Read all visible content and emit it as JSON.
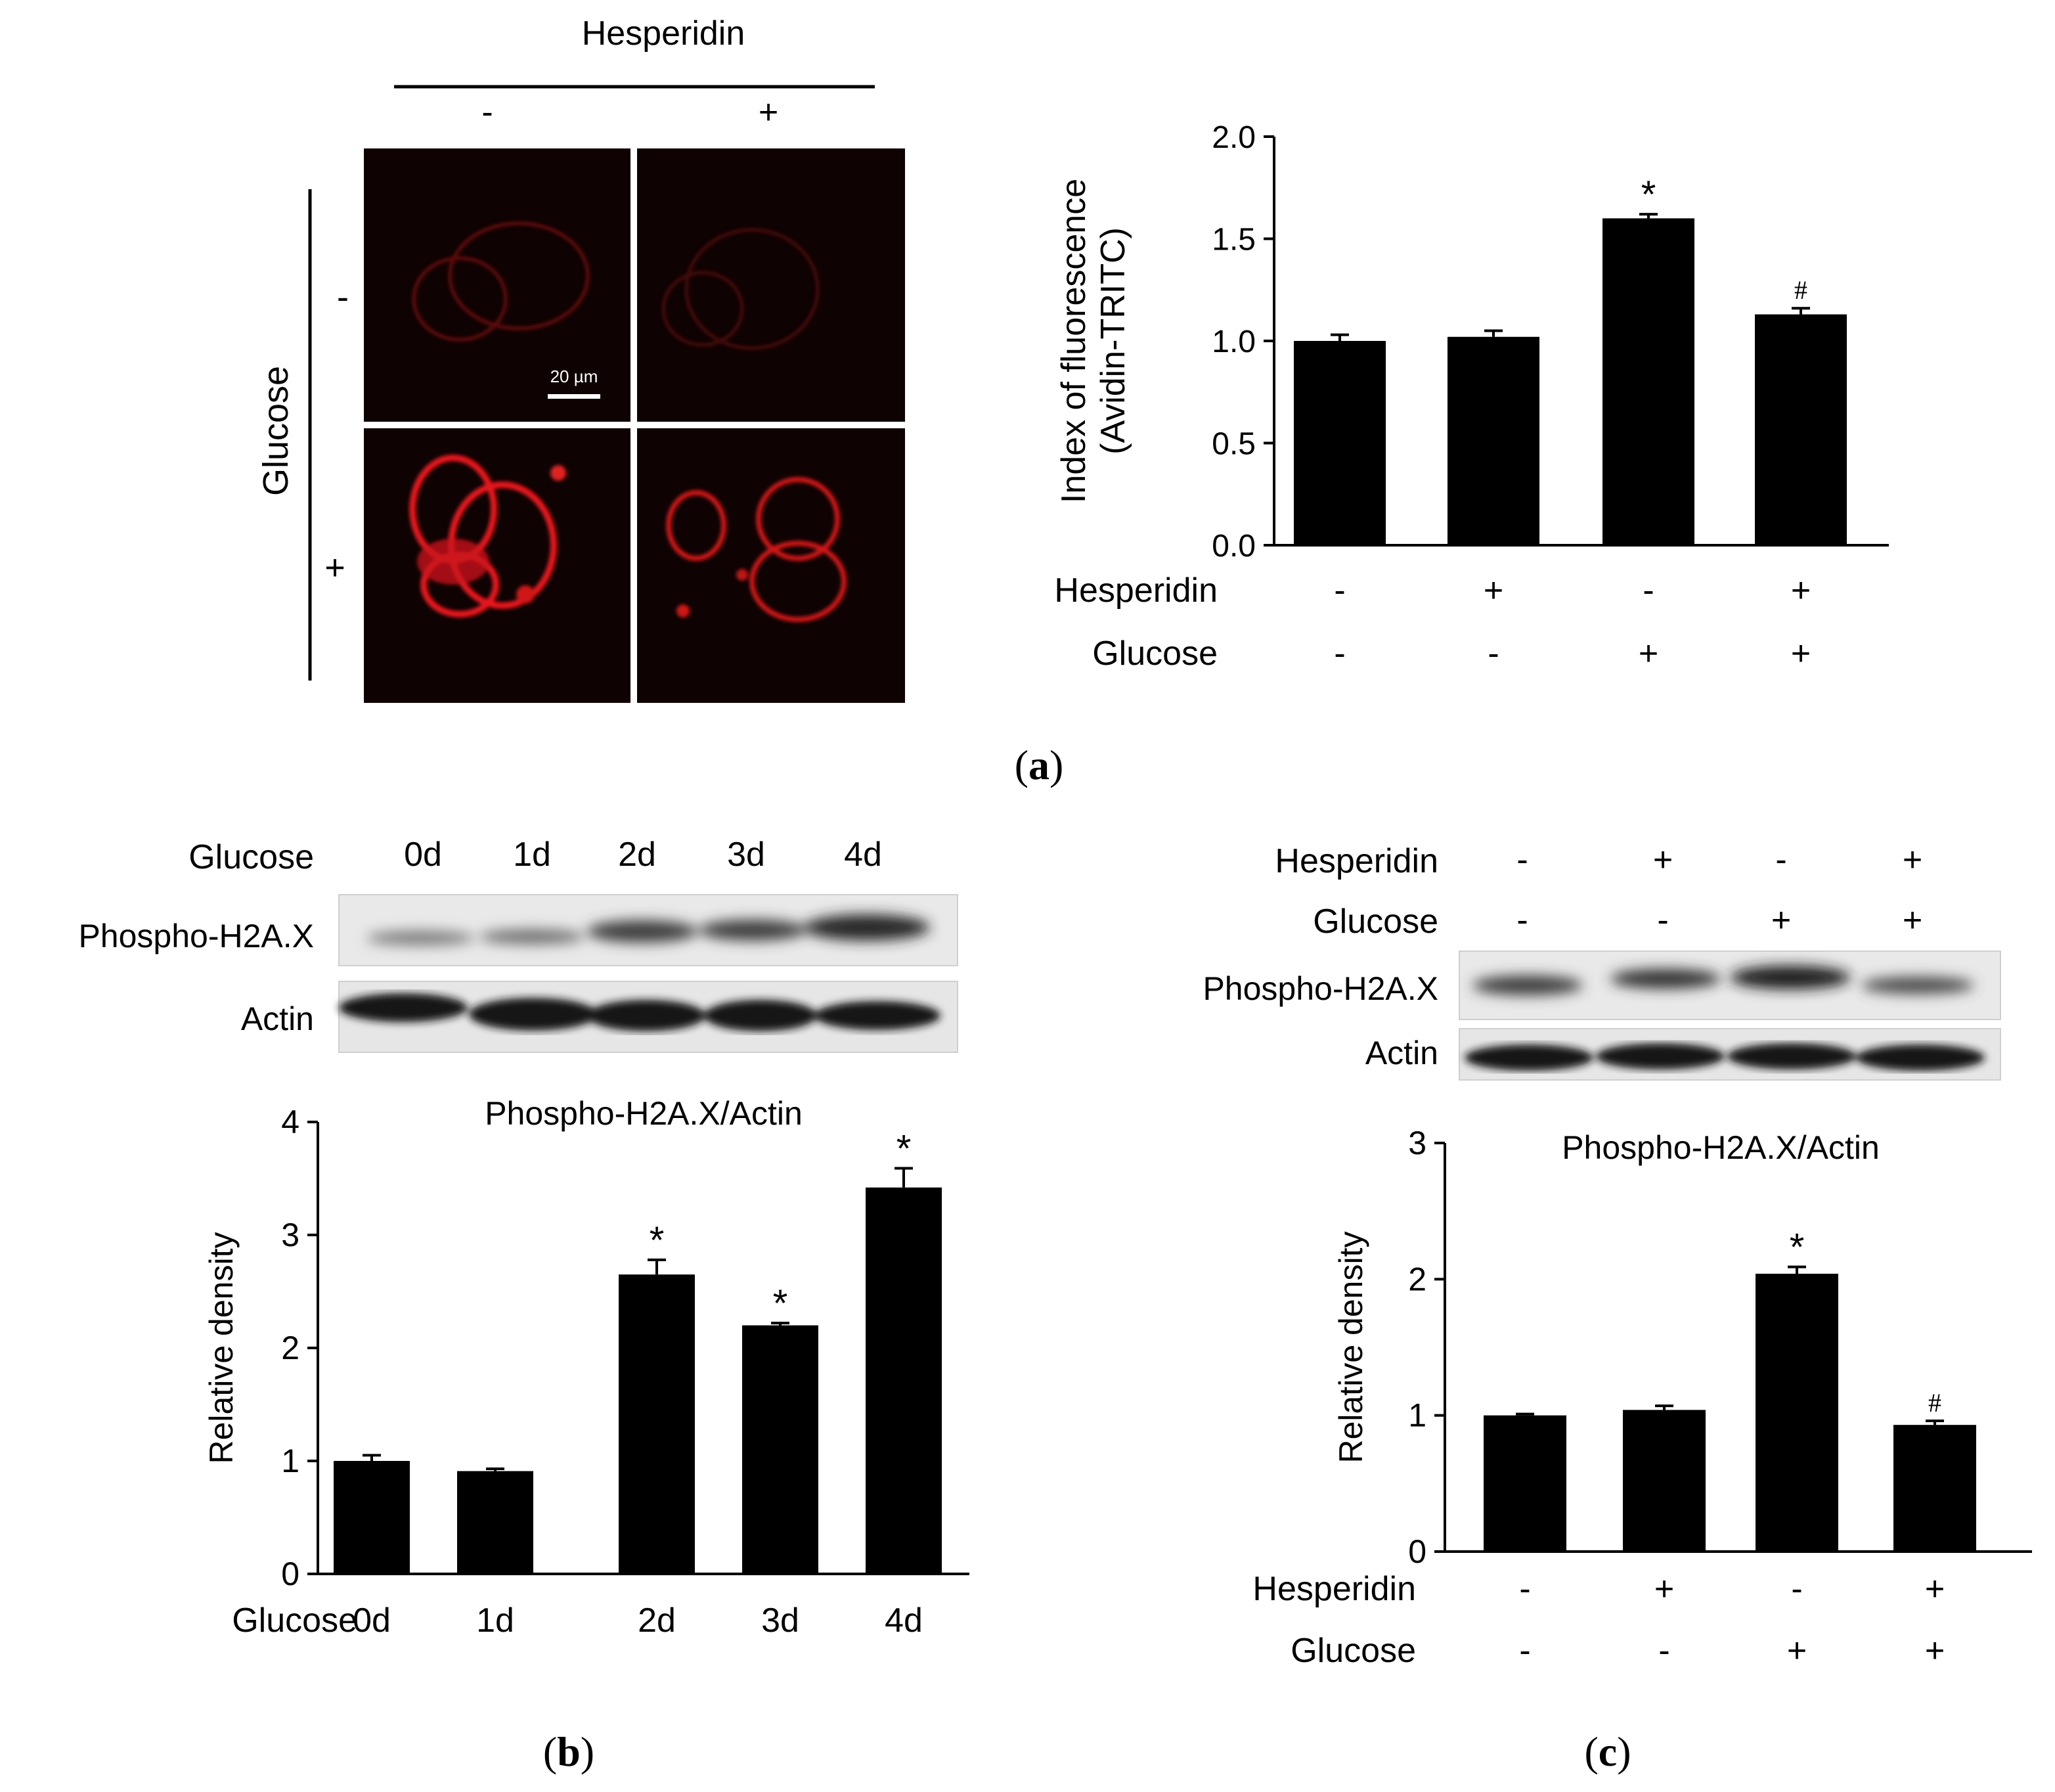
{
  "panel_a": {
    "caption_letter": "a",
    "micro": {
      "top_label": "Hesperidin",
      "col_signs": [
        "-",
        "+"
      ],
      "side_label": "Glucose",
      "row_signs": [
        "-",
        "+"
      ],
      "scale_bar": "20 µm"
    }
  },
  "panel_b": {
    "caption_letter": "b",
    "blot": {
      "header_label": "Glucose",
      "days": [
        "0d",
        "1d",
        "2d",
        "3d",
        "4d"
      ],
      "rows": [
        "Phospho-H2A.X",
        "Actin"
      ]
    }
  },
  "panel_c": {
    "caption_letter": "c",
    "blot": {
      "rows": [
        "Phospho-H2A.X",
        "Actin"
      ],
      "hesperidin_label": "Hesperidin",
      "glucose_label": "Glucose",
      "hesperidin_signs": [
        "-",
        "+",
        "-",
        "+"
      ],
      "glucose_signs": [
        "-",
        "-",
        "+",
        "+"
      ]
    }
  },
  "chart_data": [
    {
      "id": "a",
      "type": "bar",
      "title": "",
      "ylabel_line1": "Index of fluorescence",
      "ylabel_line2": "(Avidin-TRITC)",
      "ylim": [
        0,
        2.0
      ],
      "ticks": [
        "0.0",
        "0.5",
        "1.0",
        "1.5",
        "2.0"
      ],
      "values": [
        1.0,
        1.02,
        1.6,
        1.13
      ],
      "errors": [
        0.03,
        0.03,
        0.02,
        0.03
      ],
      "marks": [
        "",
        "",
        "*",
        "#"
      ],
      "factor1_label": "Hesperidin",
      "factor1": [
        "-",
        "+",
        "-",
        "+"
      ],
      "factor2_label": "Glucose",
      "factor2": [
        "-",
        "-",
        "+",
        "+"
      ]
    },
    {
      "id": "b",
      "type": "bar",
      "title": "Phospho-H2A.X/Actin",
      "ylabel": "Relative density",
      "ylim": [
        0,
        4
      ],
      "ticks": [
        "0",
        "1",
        "2",
        "3",
        "4"
      ],
      "values": [
        1.0,
        0.91,
        2.65,
        2.2,
        3.42
      ],
      "errors": [
        0.05,
        0.02,
        0.13,
        0.02,
        0.17
      ],
      "marks": [
        "",
        "",
        "*",
        "*",
        "*"
      ],
      "xlabel_title": "Glucose",
      "categories": [
        "0d",
        "1d",
        "2d",
        "3d",
        "4d"
      ]
    },
    {
      "id": "c",
      "type": "bar",
      "title": "Phospho-H2A.X/Actin",
      "ylabel": "Relative density",
      "ylim": [
        0,
        3
      ],
      "ticks": [
        "0",
        "1",
        "2",
        "3"
      ],
      "values": [
        1.0,
        1.04,
        2.04,
        0.93
      ],
      "errors": [
        0.01,
        0.03,
        0.05,
        0.03
      ],
      "marks": [
        "",
        "",
        "*",
        "#"
      ],
      "factor1_label": "Hesperidin",
      "factor1": [
        "-",
        "+",
        "-",
        "+"
      ],
      "factor2_label": "Glucose",
      "factor2": [
        "-",
        "-",
        "+",
        "+"
      ]
    }
  ]
}
